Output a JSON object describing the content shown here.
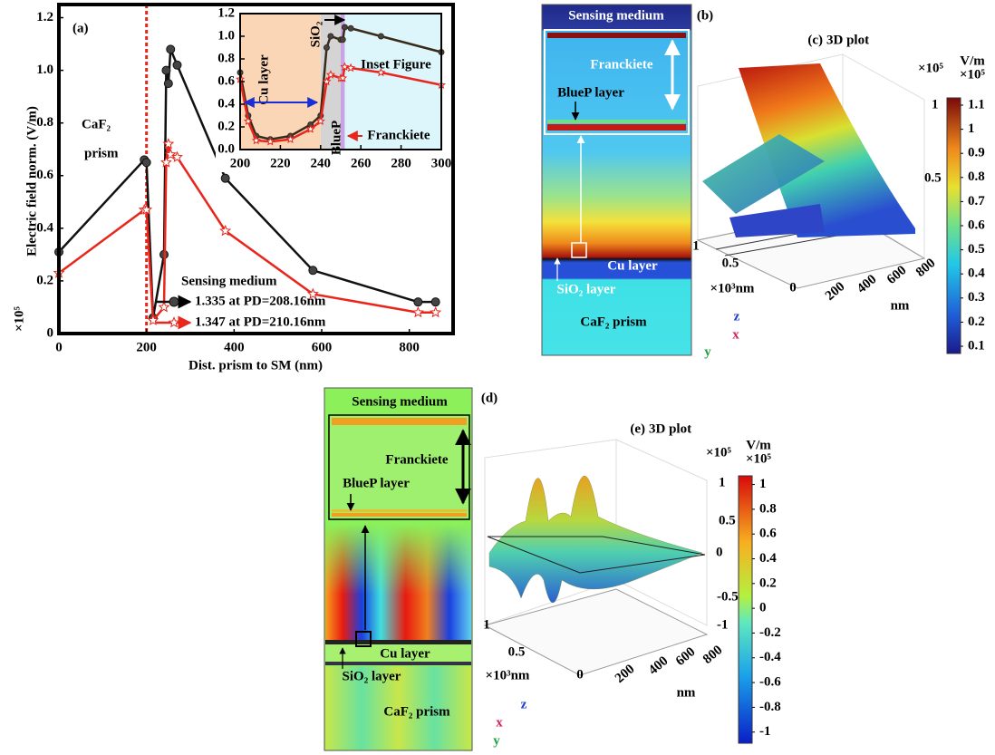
{
  "chart_data": [
    {
      "type": "line",
      "label": "(a)",
      "xlabel": "Dist. prism to SM (nm)",
      "ylabel": "Electric field norm. (V/m)",
      "yunit": "×10⁵",
      "xlim": [
        0,
        900
      ],
      "xticks": [
        0,
        200,
        400,
        600,
        800
      ],
      "ylim": [
        0,
        1.25
      ],
      "yticks": [
        0,
        0.2,
        0.4,
        0.6,
        0.8,
        {
          "value": 1,
          "label": "1.0"
        },
        1.2
      ],
      "vline": 200,
      "annotations": [
        "CaF₂",
        "prism"
      ],
      "legend_title": "Sensing medium",
      "x": [
        0,
        195,
        200,
        215,
        240,
        245,
        250,
        255,
        270,
        380,
        580,
        820,
        860
      ],
      "series": [
        {
          "name": "1.335 at PD=208.16nm",
          "color": "#111111",
          "marker": "circle",
          "values": [
            0.31,
            0.66,
            0.65,
            0.06,
            0.3,
            1.0,
            0.95,
            1.08,
            1.02,
            0.59,
            0.24,
            0.12,
            0.12
          ]
        },
        {
          "name": "1.347 at PD=210.16nm",
          "color": "#e8261c",
          "marker": "star",
          "values": [
            0.23,
            0.47,
            0.47,
            0.05,
            0.1,
            0.65,
            0.72,
            0.68,
            0.67,
            0.39,
            0.15,
            0.08,
            0.08
          ]
        }
      ]
    },
    {
      "type": "line",
      "title": "Inset Figure",
      "xlim": [
        200,
        300
      ],
      "xticks": [
        200,
        220,
        240,
        260,
        280,
        300
      ],
      "ylim": [
        0,
        1.2
      ],
      "yticks": [
        {
          "value": 0,
          "label": "0.0"
        },
        0.2,
        0.4,
        0.6,
        0.8,
        {
          "value": 1,
          "label": "1.0"
        },
        1.2
      ],
      "regions": [
        {
          "label": "Cu layer",
          "range": [
            200,
            240
          ],
          "color": "#fbd6b6"
        },
        {
          "label": "SiO₂",
          "range": [
            240,
            250
          ],
          "color": "#d4d4d4"
        },
        {
          "label": "BlueP",
          "range": [
            250,
            252
          ],
          "color": "#c9a3e6"
        },
        {
          "label": "Franckiete",
          "range": [
            252,
            300
          ],
          "color": "#dcf6fb"
        }
      ],
      "x": [
        200,
        204,
        208,
        215,
        225,
        235,
        240,
        243,
        245,
        250,
        251,
        252,
        255,
        270,
        300
      ],
      "series": [
        {
          "color": "#3a2a1a",
          "marker": "circle",
          "values": [
            0.68,
            0.3,
            0.12,
            0.09,
            0.12,
            0.22,
            0.3,
            0.9,
            1.0,
            0.97,
            0.97,
            1.08,
            1.07,
            1.0,
            0.86
          ]
        },
        {
          "color": "#e8261c",
          "marker": "star",
          "values": [
            0.62,
            0.25,
            0.08,
            0.07,
            0.09,
            0.18,
            0.25,
            0.6,
            0.66,
            0.63,
            0.63,
            0.73,
            0.72,
            0.68,
            0.57
          ]
        }
      ]
    }
  ],
  "panels": {
    "b": {
      "label": "(b)",
      "texts": [
        "Sensing medium",
        "Franckiete",
        "BlueP layer",
        "Cu layer",
        "SiO₂ layer",
        "CaF₂ prism"
      ],
      "triad": [
        "x",
        "y",
        "z"
      ]
    },
    "c": {
      "label": "(c)",
      "title": "3D plot",
      "z_unit": "×10⁵",
      "z_ticks": [
        1,
        0.5
      ],
      "y_ticks": [
        1,
        0.5,
        0
      ],
      "y_unit": "×10³nm",
      "x_ticks": [
        200,
        400,
        600,
        800
      ],
      "x_unit": "nm",
      "colorbar": {
        "unit": "V/m",
        "scale": "×10⁵",
        "lim": [
          0.07,
          1.13
        ],
        "ticks": [
          1.1,
          1,
          0.9,
          0.8,
          0.7,
          0.6,
          0.5,
          0.4,
          0.3,
          0.2,
          0.1
        ]
      }
    },
    "d": {
      "label": "(d)",
      "texts": [
        "Sensing medium",
        "Franckiete",
        "BlueP layer",
        "Cu layer",
        "SiO₂ layer",
        "CaF₂ prism"
      ],
      "triad": [
        "x",
        "y",
        "z"
      ]
    },
    "e": {
      "label": "(e)",
      "title": "3D plot",
      "z_unit": "×10⁵",
      "z_ticks": [
        1,
        0.5,
        0,
        -0.5,
        -1
      ],
      "y_ticks": [
        1,
        0.5,
        0
      ],
      "y_unit": "×10³nm",
      "x_ticks": [
        200,
        400,
        600,
        800
      ],
      "x_unit": "nm",
      "colorbar": {
        "unit": "V/m",
        "scale": "×10⁵",
        "lim": [
          -1.09,
          1.07
        ],
        "ticks": [
          1,
          0.8,
          0.6,
          0.4,
          0.2,
          0,
          -0.2,
          -0.4,
          -0.6,
          -0.8,
          -1
        ]
      }
    }
  }
}
